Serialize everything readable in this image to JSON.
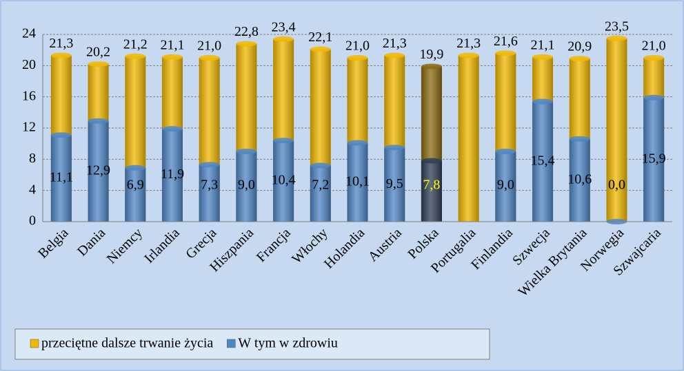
{
  "chart_data": {
    "type": "bar",
    "categories": [
      "Belgia",
      "Dania",
      "Niemcy",
      "Irlandia",
      "Grecja",
      "Hiszpania",
      "Francja",
      "Włochy",
      "Holandia",
      "Austria",
      "Polska",
      "Portugalia",
      "Finlandia",
      "Szwecja",
      "Wielka Brytania",
      "Norwegia",
      "Szwajcaria"
    ],
    "series": [
      {
        "name": "przeciętne dalsze trwanie życia",
        "color": "#f2b800",
        "values": [
          21.3,
          20.2,
          21.2,
          21.1,
          21.0,
          22.8,
          23.4,
          22.1,
          21.0,
          21.3,
          19.9,
          21.3,
          21.6,
          21.1,
          20.9,
          23.5,
          21.0
        ],
        "value_labels": [
          "21,3",
          "20,2",
          "21,2",
          "21,1",
          "21,0",
          "22,8",
          "23,4",
          "22,1",
          "21,0",
          "21,3",
          "19,9",
          "21,3",
          "21,6",
          "21,1",
          "20,9",
          "23,5",
          "21,0"
        ]
      },
      {
        "name": "W tym w zdrowiu",
        "color": "#4f86c6",
        "values": [
          11.1,
          12.9,
          6.9,
          11.9,
          7.3,
          9.0,
          10.4,
          7.2,
          10.1,
          9.5,
          7.8,
          null,
          9.0,
          15.4,
          10.6,
          0.0,
          15.9
        ],
        "value_labels": [
          "11,1",
          "12,9",
          "6,9",
          "11,9",
          "7,3",
          "9,0",
          "10,4",
          "7,2",
          "10,1",
          "9,5",
          "7,8",
          null,
          "9,0",
          "15,4",
          "10,6",
          "0,0",
          "15,9"
        ]
      }
    ],
    "highlight": {
      "index": 10,
      "colors": [
        "#8a6a10",
        "#2f3e55"
      ],
      "label_color": "#ffff00"
    },
    "ylim": [
      0,
      24
    ],
    "yticks": [
      0,
      4,
      8,
      12,
      16,
      20,
      24
    ],
    "grid": true,
    "overlap": true
  }
}
